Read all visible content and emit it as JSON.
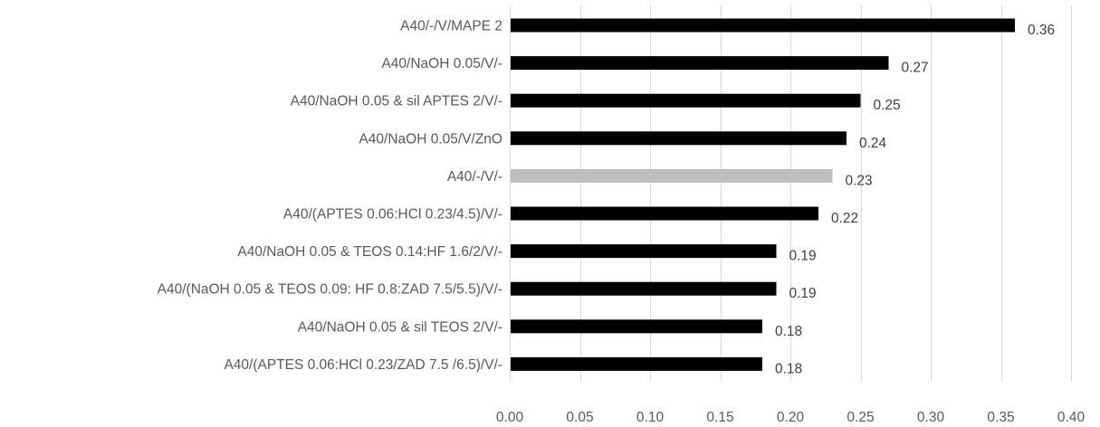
{
  "chart_data": {
    "type": "bar",
    "orientation": "horizontal",
    "categories": [
      "A40/-/V/MAPE 2",
      "A40/NaOH 0.05/V/-",
      "A40/NaOH 0.05 & sil APTES 2/V/-",
      "A40/NaOH 0.05/V/ZnO",
      "A40/-/V/-",
      "A40/(APTES 0.06:HCl 0.23/4.5)/V/-",
      "A40/NaOH 0.05 & TEOS 0.14:HF 1.6/2/V/-",
      "A40/(NaOH 0.05 & TEOS 0.09: HF 0.8:ZAD 7.5/5.5)/V/-",
      "A40/NaOH 0.05 & sil TEOS 2/V/-",
      "A40/(APTES 0.06:HCl 0.23/ZAD 7.5 /6.5)/V/-"
    ],
    "values": [
      0.36,
      0.27,
      0.25,
      0.24,
      0.23,
      0.22,
      0.19,
      0.19,
      0.18,
      0.18
    ],
    "data_labels": [
      "0.36",
      "0.27",
      "0.25",
      "0.24",
      "0.23",
      "0.22",
      "0.19",
      "0.19",
      "0.18",
      "0.18"
    ],
    "bar_colors": [
      "#000000",
      "#000000",
      "#000000",
      "#000000",
      "#bfbfbf",
      "#000000",
      "#000000",
      "#000000",
      "#000000",
      "#000000"
    ],
    "xticks": [
      0,
      0.05,
      0.1,
      0.15,
      0.2,
      0.25,
      0.3,
      0.35,
      0.4
    ],
    "xtick_labels": [
      "0.00",
      "0.05",
      "0.10",
      "0.15",
      "0.20",
      "0.25",
      "0.30",
      "0.35",
      "0.40"
    ],
    "xlim": [
      0,
      0.4
    ],
    "title": "",
    "xlabel": "",
    "ylabel": "",
    "grid": "vertical",
    "legend": "none"
  }
}
